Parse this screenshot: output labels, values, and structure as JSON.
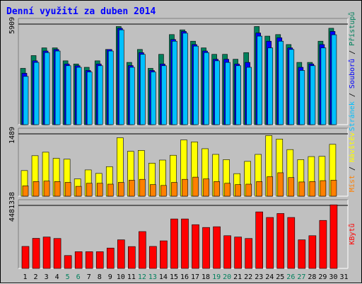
{
  "title": "Denní využití za duben 2014",
  "colors": {
    "background": "#c0c0c0",
    "title": "#0000ff",
    "day_weekday": "#000000",
    "day_weekend": "#00805c",
    "hits": "#00805c",
    "files": "#0000ff",
    "pages": "#00c0ff",
    "visits": "#ffff00",
    "sites": "#ff8000",
    "kbytes": "#ff0000"
  },
  "chart_data": [
    {
      "type": "bar",
      "panel": "top",
      "y_tick_label": "5909",
      "ylim": [
        0,
        5909
      ],
      "right_legend": [
        "Přístupů",
        "Souborů",
        "Stránek"
      ],
      "x": [
        "1",
        "2",
        "3",
        "4",
        "5",
        "6",
        "7",
        "8",
        "9",
        "10",
        "11",
        "12",
        "13",
        "14",
        "15",
        "16",
        "17",
        "18",
        "19",
        "20",
        "21",
        "22",
        "23",
        "24",
        "25",
        "26",
        "27",
        "28",
        "29",
        "30",
        "31"
      ],
      "series": [
        {
          "name": "Přístupů",
          "values": [
            3380,
            4110,
            4550,
            4550,
            3810,
            3630,
            3440,
            3810,
            4460,
            5770,
            3720,
            4460,
            3380,
            4180,
            5310,
            5580,
            4930,
            4550,
            4180,
            4180,
            3900,
            4280,
            5770,
            5220,
            5310,
            4740,
            3720,
            3720,
            4930,
            5670,
            0
          ]
        },
        {
          "name": "Souborů",
          "values": [
            3100,
            3810,
            4370,
            4460,
            3630,
            3530,
            3260,
            3630,
            4460,
            5670,
            3540,
            4280,
            3260,
            3630,
            5030,
            5490,
            4740,
            4370,
            3900,
            3900,
            3630,
            3720,
            5400,
            4930,
            5130,
            4550,
            3440,
            3630,
            4740,
            5490,
            0
          ]
        },
        {
          "name": "Stránek",
          "values": [
            2920,
            3720,
            4280,
            4370,
            3530,
            3440,
            3170,
            3530,
            4370,
            5580,
            3440,
            4180,
            3170,
            3530,
            4930,
            5390,
            4650,
            4280,
            3810,
            3720,
            3530,
            3440,
            5220,
            4550,
            4930,
            4460,
            3260,
            3530,
            4550,
            5300,
            0
          ]
        }
      ]
    },
    {
      "type": "bar",
      "panel": "middle",
      "y_tick_label": "1489",
      "ylim": [
        0,
        1489
      ],
      "right_legend": [
        "Návštěv",
        "Míst"
      ],
      "x": [
        "1",
        "2",
        "3",
        "4",
        "5",
        "6",
        "7",
        "8",
        "9",
        "10",
        "11",
        "12",
        "13",
        "14",
        "15",
        "16",
        "17",
        "18",
        "19",
        "20",
        "21",
        "22",
        "23",
        "24",
        "25",
        "26",
        "27",
        "28",
        "29",
        "30",
        "31"
      ],
      "series": [
        {
          "name": "Návštěv",
          "values": [
            650,
            990,
            1070,
            930,
            910,
            460,
            665,
            585,
            740,
            1400,
            1090,
            1110,
            820,
            890,
            1000,
            1350,
            1305,
            1150,
            1020,
            900,
            580,
            860,
            1020,
            1450,
            1370,
            1130,
            900,
            970,
            975,
            1250,
            0
          ]
        },
        {
          "name": "Míst",
          "values": [
            300,
            400,
            410,
            400,
            380,
            290,
            360,
            360,
            340,
            380,
            430,
            450,
            330,
            310,
            380,
            450,
            500,
            460,
            400,
            360,
            330,
            340,
            400,
            510,
            600,
            490,
            390,
            400,
            420,
            430,
            0
          ]
        }
      ]
    },
    {
      "type": "bar",
      "panel": "bottom",
      "y_tick_label": "4481338",
      "ylim": [
        0,
        4481338
      ],
      "right_legend": [
        "KBytů"
      ],
      "x": [
        "1",
        "2",
        "3",
        "4",
        "5",
        "6",
        "7",
        "8",
        "9",
        "10",
        "11",
        "12",
        "13",
        "14",
        "15",
        "16",
        "17",
        "18",
        "19",
        "20",
        "21",
        "22",
        "23",
        "24",
        "25",
        "26",
        "27",
        "28",
        "29",
        "30",
        "31"
      ],
      "series": [
        {
          "name": "KBytů",
          "values": [
            1690000,
            2240000,
            2330000,
            2230000,
            1070000,
            1330000,
            1330000,
            1330000,
            1580000,
            2140000,
            1680000,
            2700000,
            1690000,
            2070000,
            3560000,
            3560000,
            3170000,
            2980000,
            3030000,
            2420000,
            2330000,
            2230000,
            4040000,
            3660000,
            3930000,
            3660000,
            2140000,
            2420000,
            3460000,
            4520000,
            0
          ]
        }
      ]
    }
  ],
  "weekend_days": [
    "5",
    "6",
    "12",
    "13",
    "19",
    "20",
    "26",
    "27"
  ]
}
